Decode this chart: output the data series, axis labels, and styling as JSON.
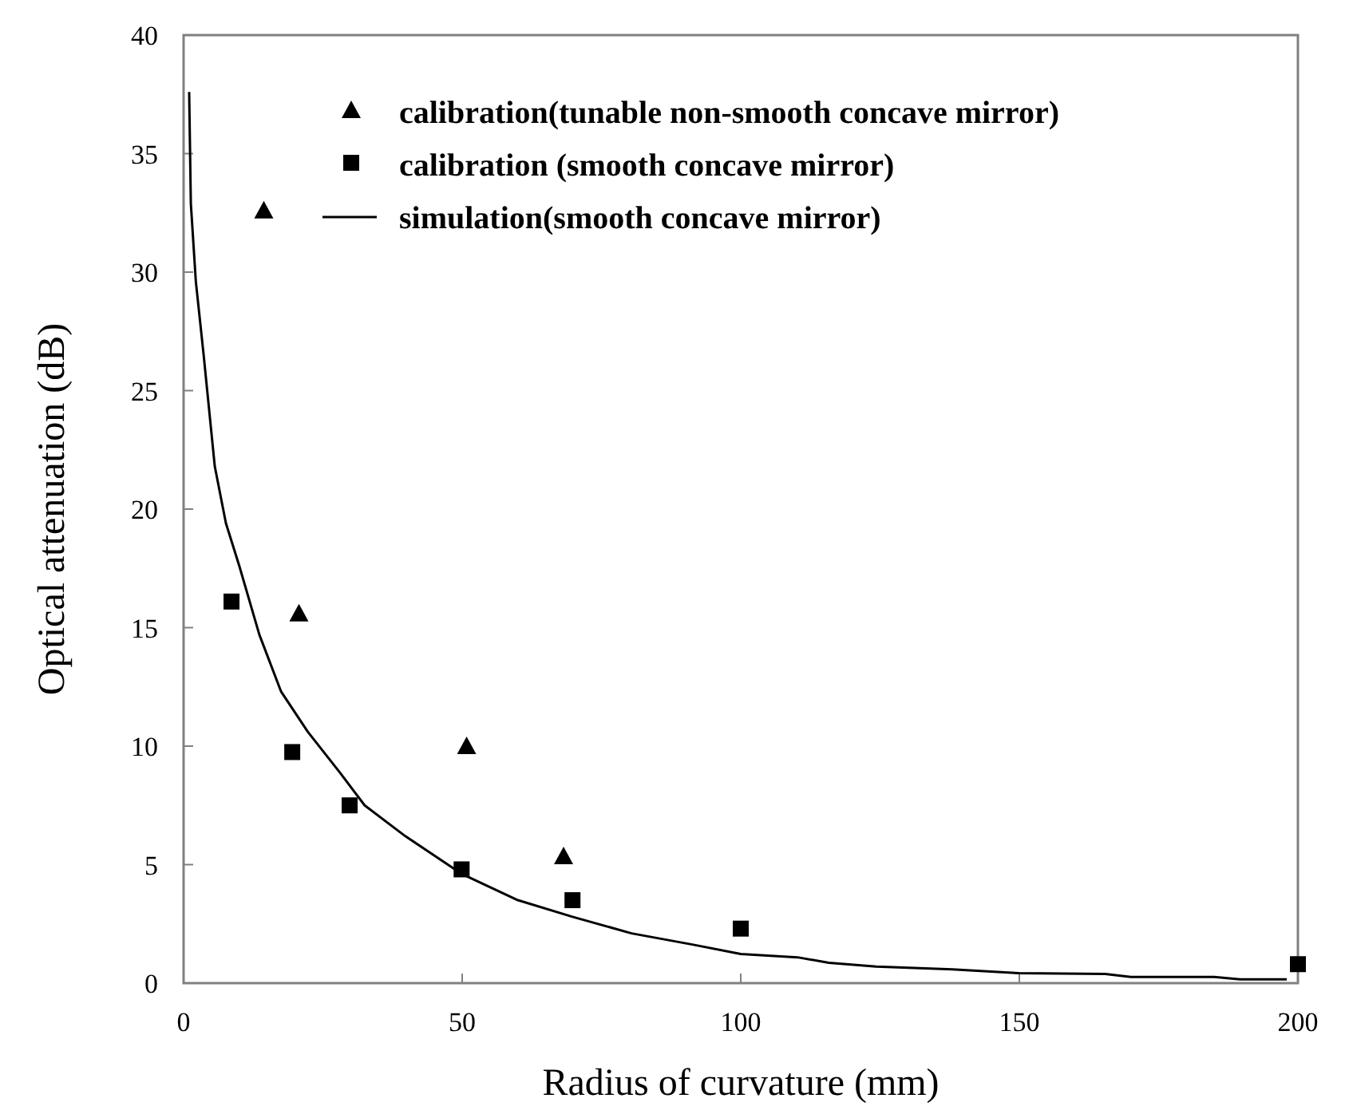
{
  "chart_data": {
    "type": "scatter",
    "xlabel": "Radius of curvature (mm)",
    "ylabel": "Optical attenuation (dB)",
    "xlim": [
      0,
      200
    ],
    "xticks": [
      0,
      50,
      100,
      150,
      200
    ],
    "ylim": [
      0,
      40
    ],
    "yticks": [
      0,
      5,
      10,
      15,
      20,
      25,
      30,
      35,
      40
    ],
    "grid": false,
    "legend": "top right",
    "series": [
      {
        "name": "calibration(tunable non-smooth concave mirror)",
        "marker": "triangle",
        "color": "#000000",
        "x": [
          14.4,
          20.7,
          50.8,
          68.2
        ],
        "values": [
          32.6,
          15.6,
          10.0,
          5.35
        ]
      },
      {
        "name": "calibration (smooth concave mirror)",
        "marker": "square",
        "color": "#000000",
        "x": [
          8.6,
          19.5,
          29.8,
          49.9,
          69.8,
          100,
          200
        ],
        "values": [
          16.1,
          9.75,
          7.5,
          4.8,
          3.5,
          2.3,
          0.8
        ]
      },
      {
        "name": "simulation(smooth concave mirror)",
        "type": "line",
        "marker": "none",
        "line_style": "solid",
        "color": "#000000",
        "x": [
          1,
          1.3,
          2.2,
          3.6,
          5.6,
          7.6,
          10,
          13.6,
          17.5,
          22.3,
          28,
          32.5,
          39.8,
          50,
          60,
          69.8,
          80.4,
          91.5,
          100,
          110.2,
          115.8,
          124.3,
          138,
          150,
          165.4,
          170,
          185,
          189.6,
          198
        ],
        "values": [
          37.6,
          32.9,
          29.6,
          26.5,
          21.8,
          19.4,
          17.6,
          14.7,
          12.3,
          10.6,
          8.9,
          7.5,
          6.2,
          4.6,
          3.5,
          2.8,
          2.1,
          1.62,
          1.23,
          1.09,
          0.86,
          0.7,
          0.58,
          0.42,
          0.39,
          0.26,
          0.26,
          0.16,
          0.16
        ]
      }
    ]
  }
}
